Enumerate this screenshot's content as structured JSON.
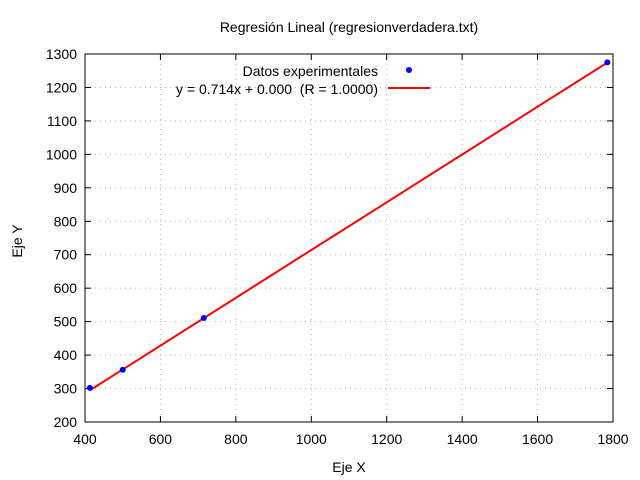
{
  "chart_data": {
    "type": "scatter",
    "title": "Regresión Lineal (regresionverdadera.txt)",
    "xlabel": "Eje X",
    "ylabel": "Eje Y",
    "xlim": [
      400,
      1800
    ],
    "ylim": [
      200,
      1300
    ],
    "xticks": [
      400,
      600,
      800,
      1000,
      1200,
      1400,
      1600,
      1800
    ],
    "yticks": [
      200,
      300,
      400,
      500,
      600,
      700,
      800,
      900,
      1000,
      1100,
      1200,
      1300
    ],
    "grid": true,
    "legend_position": "top-right",
    "series": [
      {
        "name": "Datos experimentales",
        "kind": "points",
        "color": "#0000ff",
        "x": [
          413,
          500,
          715,
          1785
        ],
        "y": [
          302,
          356,
          511,
          1275
        ]
      },
      {
        "name": "y = 0.714x + 0.000  (R = 1.0000)",
        "kind": "line",
        "color": "#ff0000",
        "slope": 0.714,
        "intercept": 0.0,
        "x": [
          413,
          1785
        ]
      }
    ]
  }
}
